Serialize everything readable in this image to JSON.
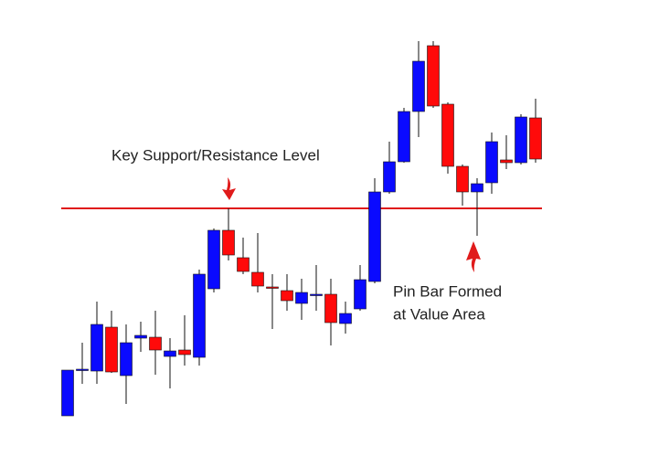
{
  "chart_data": {
    "type": "candlestick",
    "annotations": [
      "Key Support/Resistance Level",
      "Pin Bar Formed",
      "at Value Area"
    ],
    "up_color": "#0a0aff",
    "down_color": "#ff0a0a",
    "level": 283,
    "level_color": "#e01b1b",
    "ylim": [
      0,
      511
    ],
    "open": [
      56,
      106,
      105,
      153,
      100,
      141,
      142,
      121,
      128,
      120,
      195,
      259,
      229,
      213,
      197,
      193,
      179,
      188,
      189,
      157,
      173,
      203,
      301,
      334,
      389,
      461,
      397,
      329,
      301,
      311,
      336,
      333,
      382
    ],
    "high": [
      106,
      136,
      181,
      171,
      156,
      159,
      171,
      141,
      166,
      216,
      261,
      283,
      251,
      256,
      211,
      211,
      206,
      221,
      206,
      181,
      221,
      316,
      356,
      393,
      466,
      466,
      399,
      331,
      316,
      366,
      363,
      386,
      403
    ],
    "low": [
      56,
      91,
      91,
      103,
      69,
      126,
      101,
      86,
      111,
      111,
      191,
      226,
      211,
      191,
      151,
      171,
      161,
      171,
      133,
      146,
      171,
      201,
      299,
      333,
      361,
      393,
      321,
      286,
      253,
      299,
      326,
      331,
      333
    ],
    "close": [
      106,
      107,
      156,
      104,
      136,
      144,
      128,
      127,
      123,
      211,
      259,
      232,
      214,
      198,
      196,
      182,
      191,
      189,
      158,
      168,
      205,
      301,
      334,
      389,
      444,
      395,
      329,
      301,
      310,
      356,
      333,
      383,
      337
    ]
  }
}
